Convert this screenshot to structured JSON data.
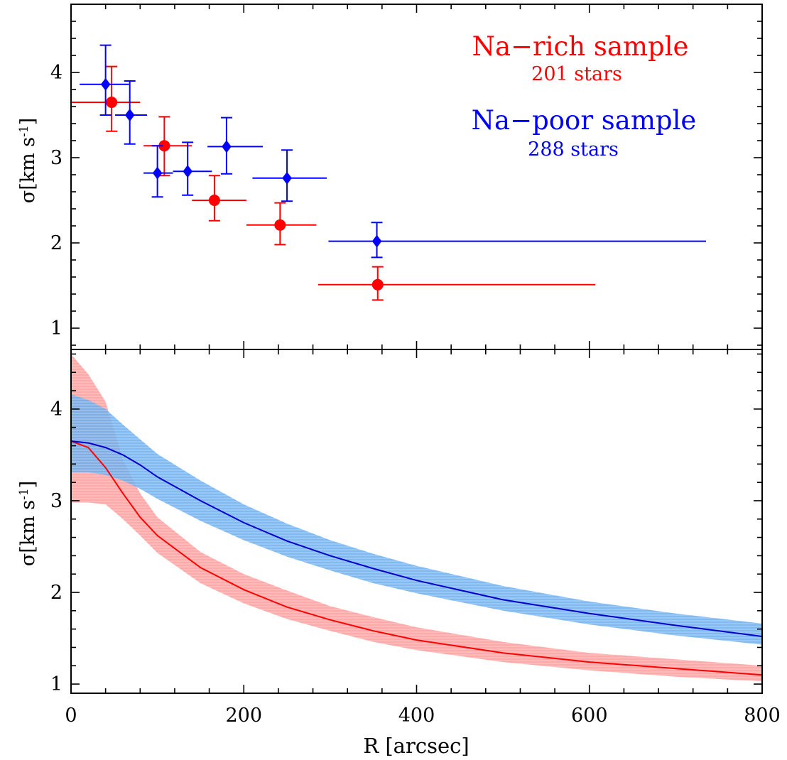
{
  "chart_data": [
    {
      "type": "scatter",
      "panel": "top",
      "ylabel": "σ[km s",
      "ylabel_sup": "-1",
      "ylabel_end": "]",
      "xlim": [
        0,
        800
      ],
      "ylim": [
        0.75,
        4.8
      ],
      "yticks": [
        "1",
        "2",
        "3",
        "4"
      ],
      "legend_placement": "top-right",
      "annotations": [
        {
          "text": "Na−rich sample",
          "color": "#ff0000"
        },
        {
          "text": "201 stars",
          "color": "#ff0000"
        },
        {
          "text": "Na−poor sample",
          "color": "#0000ff"
        },
        {
          "text": "288 stars",
          "color": "#0000ff"
        }
      ],
      "series": [
        {
          "name": "Na−rich sample",
          "color": "#ff0000",
          "marker": "circle",
          "points": [
            {
              "x": 47,
              "y": 3.65,
              "xmin": 0,
              "xmax": 80,
              "ymin": 3.31,
              "ymax": 4.07
            },
            {
              "x": 108,
              "y": 3.14,
              "xmin": 84,
              "xmax": 140,
              "ymin": 2.79,
              "ymax": 3.48
            },
            {
              "x": 166,
              "y": 2.5,
              "xmin": 140,
              "xmax": 203,
              "ymin": 2.26,
              "ymax": 2.79
            },
            {
              "x": 242,
              "y": 2.21,
              "xmin": 203,
              "xmax": 284,
              "ymin": 1.98,
              "ymax": 2.47
            },
            {
              "x": 355,
              "y": 1.51,
              "xmin": 286,
              "xmax": 607,
              "ymin": 1.33,
              "ymax": 1.72
            }
          ]
        },
        {
          "name": "Na−poor sample",
          "color": "#0000ff",
          "marker": "diamond",
          "points": [
            {
              "x": 40,
              "y": 3.86,
              "xmin": 10,
              "xmax": 67,
              "ymin": 3.5,
              "ymax": 4.32
            },
            {
              "x": 68,
              "y": 3.5,
              "xmin": 51,
              "xmax": 88,
              "ymin": 3.16,
              "ymax": 3.9
            },
            {
              "x": 100,
              "y": 2.82,
              "xmin": 84,
              "xmax": 118,
              "ymin": 2.54,
              "ymax": 3.14
            },
            {
              "x": 135,
              "y": 2.84,
              "xmin": 118,
              "xmax": 163,
              "ymin": 2.56,
              "ymax": 3.18
            },
            {
              "x": 180,
              "y": 3.13,
              "xmin": 158,
              "xmax": 222,
              "ymin": 2.81,
              "ymax": 3.47
            },
            {
              "x": 250,
              "y": 2.76,
              "xmin": 210,
              "xmax": 296,
              "ymin": 2.49,
              "ymax": 3.09
            },
            {
              "x": 354,
              "y": 2.02,
              "xmin": 298,
              "xmax": 735,
              "ymin": 1.83,
              "ymax": 2.24
            }
          ]
        }
      ]
    },
    {
      "type": "area",
      "panel": "bottom",
      "xlabel": "R [arcsec]",
      "ylabel": "σ[km s",
      "ylabel_sup": "-1",
      "ylabel_end": "]",
      "xlim": [
        0,
        800
      ],
      "ylim": [
        0.9,
        4.65
      ],
      "xticks": [
        "0",
        "200",
        "400",
        "600",
        "800"
      ],
      "yticks": [
        "1",
        "2",
        "3",
        "4"
      ],
      "series": [
        {
          "name": "Na−rich sample",
          "line_color": "#ff0000",
          "band_color": "#ff9a9a",
          "x": [
            0,
            20,
            40,
            60,
            80,
            100,
            150,
            200,
            250,
            300,
            350,
            400,
            500,
            600,
            700,
            800
          ],
          "y": [
            3.65,
            3.58,
            3.36,
            3.08,
            2.82,
            2.62,
            2.27,
            2.03,
            1.84,
            1.7,
            1.58,
            1.48,
            1.34,
            1.24,
            1.17,
            1.1
          ],
          "lower": [
            2.98,
            2.98,
            2.96,
            2.8,
            2.62,
            2.43,
            2.1,
            1.88,
            1.71,
            1.58,
            1.46,
            1.37,
            1.24,
            1.15,
            1.08,
            1.03
          ],
          "upper": [
            4.6,
            4.38,
            4.08,
            3.45,
            3.08,
            2.82,
            2.44,
            2.2,
            2.02,
            1.85,
            1.73,
            1.62,
            1.46,
            1.34,
            1.27,
            1.2
          ]
        },
        {
          "name": "Na−poor sample",
          "line_color": "#0000cc",
          "band_color": "#6aaeee",
          "x": [
            0,
            20,
            40,
            60,
            80,
            100,
            150,
            200,
            250,
            300,
            350,
            400,
            500,
            600,
            700,
            800
          ],
          "y": [
            3.65,
            3.63,
            3.58,
            3.5,
            3.39,
            3.26,
            3.0,
            2.76,
            2.56,
            2.4,
            2.26,
            2.13,
            1.92,
            1.77,
            1.64,
            1.52
          ],
          "lower": [
            3.31,
            3.31,
            3.28,
            3.22,
            3.13,
            3.02,
            2.78,
            2.57,
            2.39,
            2.24,
            2.1,
            1.99,
            1.8,
            1.65,
            1.53,
            1.43
          ],
          "upper": [
            4.16,
            4.1,
            4.0,
            3.83,
            3.67,
            3.51,
            3.22,
            2.96,
            2.75,
            2.57,
            2.42,
            2.29,
            2.07,
            1.9,
            1.77,
            1.66
          ]
        }
      ]
    }
  ]
}
